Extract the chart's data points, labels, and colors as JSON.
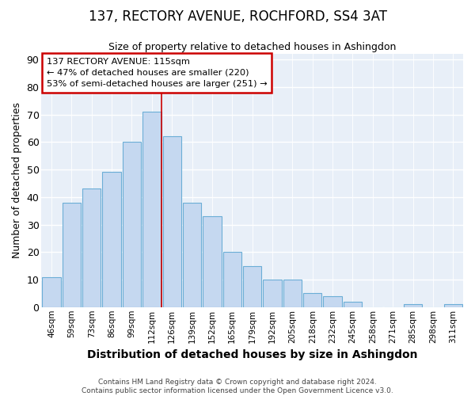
{
  "title1": "137, RECTORY AVENUE, ROCHFORD, SS4 3AT",
  "title2": "Size of property relative to detached houses in Ashingdon",
  "xlabel": "Distribution of detached houses by size in Ashingdon",
  "ylabel": "Number of detached properties",
  "footnote": "Contains HM Land Registry data © Crown copyright and database right 2024.\nContains public sector information licensed under the Open Government Licence v3.0.",
  "bin_labels": [
    "46sqm",
    "59sqm",
    "73sqm",
    "86sqm",
    "99sqm",
    "112sqm",
    "126sqm",
    "139sqm",
    "152sqm",
    "165sqm",
    "179sqm",
    "192sqm",
    "205sqm",
    "218sqm",
    "232sqm",
    "245sqm",
    "258sqm",
    "271sqm",
    "285sqm",
    "298sqm",
    "311sqm"
  ],
  "bar_heights": [
    11,
    38,
    43,
    49,
    60,
    71,
    62,
    38,
    33,
    20,
    15,
    10,
    10,
    5,
    4,
    2,
    0,
    0,
    1,
    0,
    1
  ],
  "bar_color": "#c5d8f0",
  "bar_edge_color": "#6baed6",
  "annotation_title": "137 RECTORY AVENUE: 115sqm",
  "annotation_line1": "← 47% of detached houses are smaller (220)",
  "annotation_line2": "53% of semi-detached houses are larger (251) →",
  "annotation_box_facecolor": "#ffffff",
  "annotation_box_edgecolor": "#cc0000",
  "vline_x_index": 5,
  "vline_color": "#cc0000",
  "ylim": [
    0,
    92
  ],
  "plot_bg_color": "#e8eff8",
  "fig_bg_color": "#ffffff",
  "grid_color": "#ffffff",
  "ylabel_fontsize": 9,
  "xlabel_fontsize": 10,
  "title1_fontsize": 12,
  "title2_fontsize": 9
}
